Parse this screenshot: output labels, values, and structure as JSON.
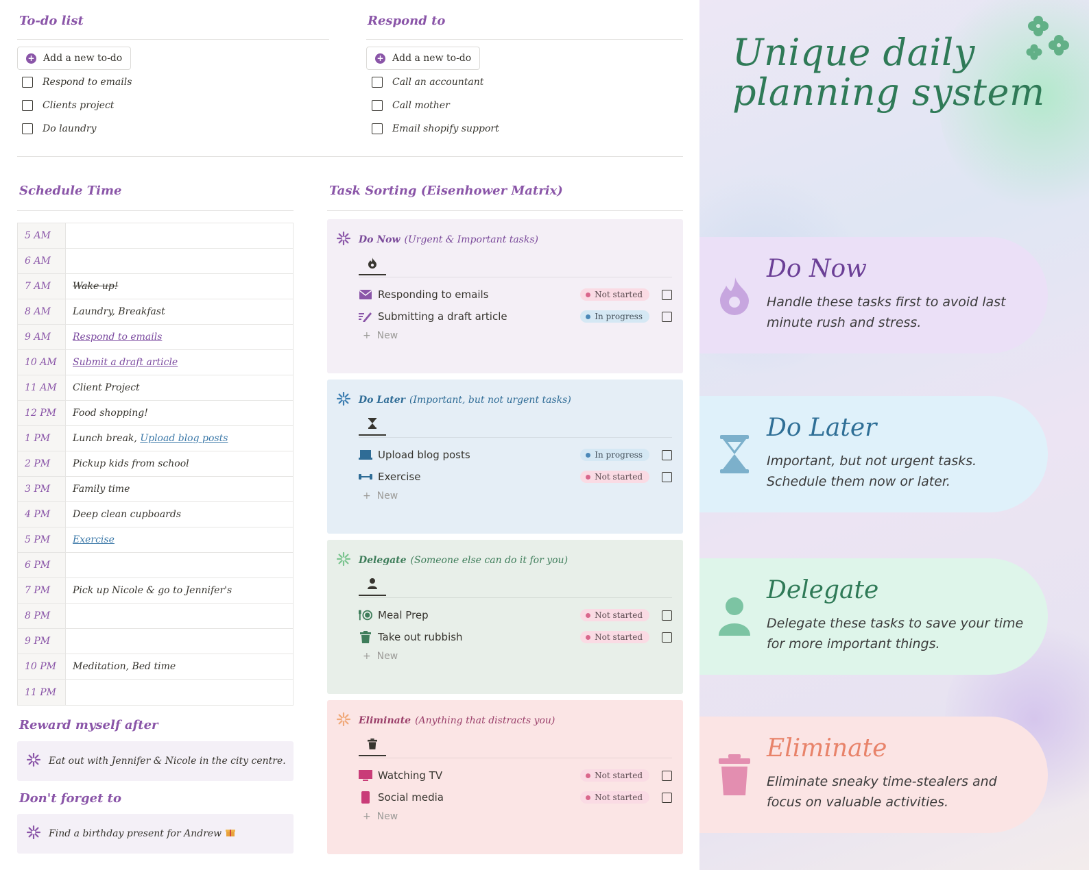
{
  "todo": {
    "title": "To-do list",
    "add_label": "Add a new to-do",
    "items": [
      "Respond to emails",
      "Clients project",
      "Do laundry"
    ]
  },
  "respond": {
    "title": "Respond to",
    "add_label": "Add a new to-do",
    "items": [
      "Call an accountant",
      "Call mother",
      "Email shopify support"
    ]
  },
  "schedule": {
    "title": "Schedule Time",
    "rows": [
      {
        "time": "5 AM",
        "text": ""
      },
      {
        "time": "6 AM",
        "text": ""
      },
      {
        "time": "7 AM",
        "text": "Wake up!"
      },
      {
        "time": "8 AM",
        "text": "Laundry, Breakfast"
      },
      {
        "time": "9 AM",
        "text": "Respond to emails"
      },
      {
        "time": "10 AM",
        "text": "Submit a draft article"
      },
      {
        "time": "11 AM",
        "text": "Client Project"
      },
      {
        "time": "12 PM",
        "text": "Food shopping!"
      },
      {
        "time": "1 PM",
        "text": "Lunch break,",
        "link": "Upload blog posts"
      },
      {
        "time": "2 PM",
        "text": "Pickup kids from school"
      },
      {
        "time": "3 PM",
        "text": "Family time"
      },
      {
        "time": "4 PM",
        "text": "Deep clean cupboards"
      },
      {
        "time": "5 PM",
        "text": "Exercise"
      },
      {
        "time": "6 PM",
        "text": ""
      },
      {
        "time": "7 PM",
        "text": "Pick up Nicole & go to Jennifer's"
      },
      {
        "time": "8 PM",
        "text": ""
      },
      {
        "time": "9 PM",
        "text": ""
      },
      {
        "time": "10 PM",
        "text": "Meditation, Bed time"
      },
      {
        "time": "11 PM",
        "text": ""
      }
    ]
  },
  "reward": {
    "title": "Reward myself after",
    "text": "Eat out with Jennifer & Nicole in the city centre."
  },
  "dont_forget": {
    "title": "Don't forget to",
    "text": "Find a birthday present for Andrew"
  },
  "matrix": {
    "title": "Task Sorting (Eisenhower Matrix)",
    "new_label": "New",
    "quadrants": [
      {
        "name": "Do Now",
        "subtitle": "(Urgent & Important tasks)",
        "bg": "#f4eff6",
        "accent": "#7a4a9a",
        "tab_icon": "fire-icon",
        "tasks": [
          {
            "name": "Responding to emails",
            "icon": "envelope-icon",
            "status": "Not started"
          },
          {
            "name": "Submitting a draft article",
            "icon": "pen-icon",
            "status": "In progress"
          }
        ]
      },
      {
        "name": "Do Later",
        "subtitle": "(Important, but not urgent tasks)",
        "bg": "#e5eef6",
        "accent": "#2f6c96",
        "tab_icon": "hourglass-icon",
        "tasks": [
          {
            "name": "Upload blog posts",
            "icon": "laptop-icon",
            "status": "In progress"
          },
          {
            "name": "Exercise",
            "icon": "dumbbell-icon",
            "status": "Not started"
          }
        ]
      },
      {
        "name": "Delegate",
        "subtitle": "(Someone else can do it for you)",
        "bg": "#e8efe9",
        "accent": "#3e7d5a",
        "tab_icon": "person-icon",
        "tasks": [
          {
            "name": "Meal Prep",
            "icon": "utensils-icon",
            "status": "Not started"
          },
          {
            "name": "Take out rubbish",
            "icon": "trash-icon",
            "status": "Not started"
          }
        ]
      },
      {
        "name": "Eliminate",
        "subtitle": "(Anything that distracts you)",
        "bg": "#fbe5e5",
        "accent": "#9a3f6a",
        "tab_icon": "trash-icon",
        "tasks": [
          {
            "name": "Watching TV",
            "icon": "tv-icon",
            "status": "Not started"
          },
          {
            "name": "Social media",
            "icon": "phone-icon",
            "status": "Not started"
          }
        ]
      }
    ]
  },
  "promo": {
    "headline_line1": "Unique daily",
    "headline_line2": "planning system",
    "cards": [
      {
        "title": "Do Now",
        "desc": "Handle these tasks first to avoid last minute rush and stress.",
        "bg": "#ebe0f7",
        "color": "#6b3f96",
        "icon": "fire-icon"
      },
      {
        "title": "Do Later",
        "desc": "Important, but not urgent tasks. Schedule them now or later.",
        "bg": "#dff1fa",
        "color": "#2f6f96",
        "icon": "hourglass-icon"
      },
      {
        "title": "Delegate",
        "desc": "Delegate these tasks to save your time for more important things.",
        "bg": "#def5ea",
        "color": "#2f7a57",
        "icon": "person-icon"
      },
      {
        "title": "Eliminate",
        "desc": "Eliminate sneaky time-stealers and focus on valuable activities.",
        "bg": "#fbe4e4",
        "color": "#e8836a",
        "icon": "trash-icon"
      }
    ]
  }
}
